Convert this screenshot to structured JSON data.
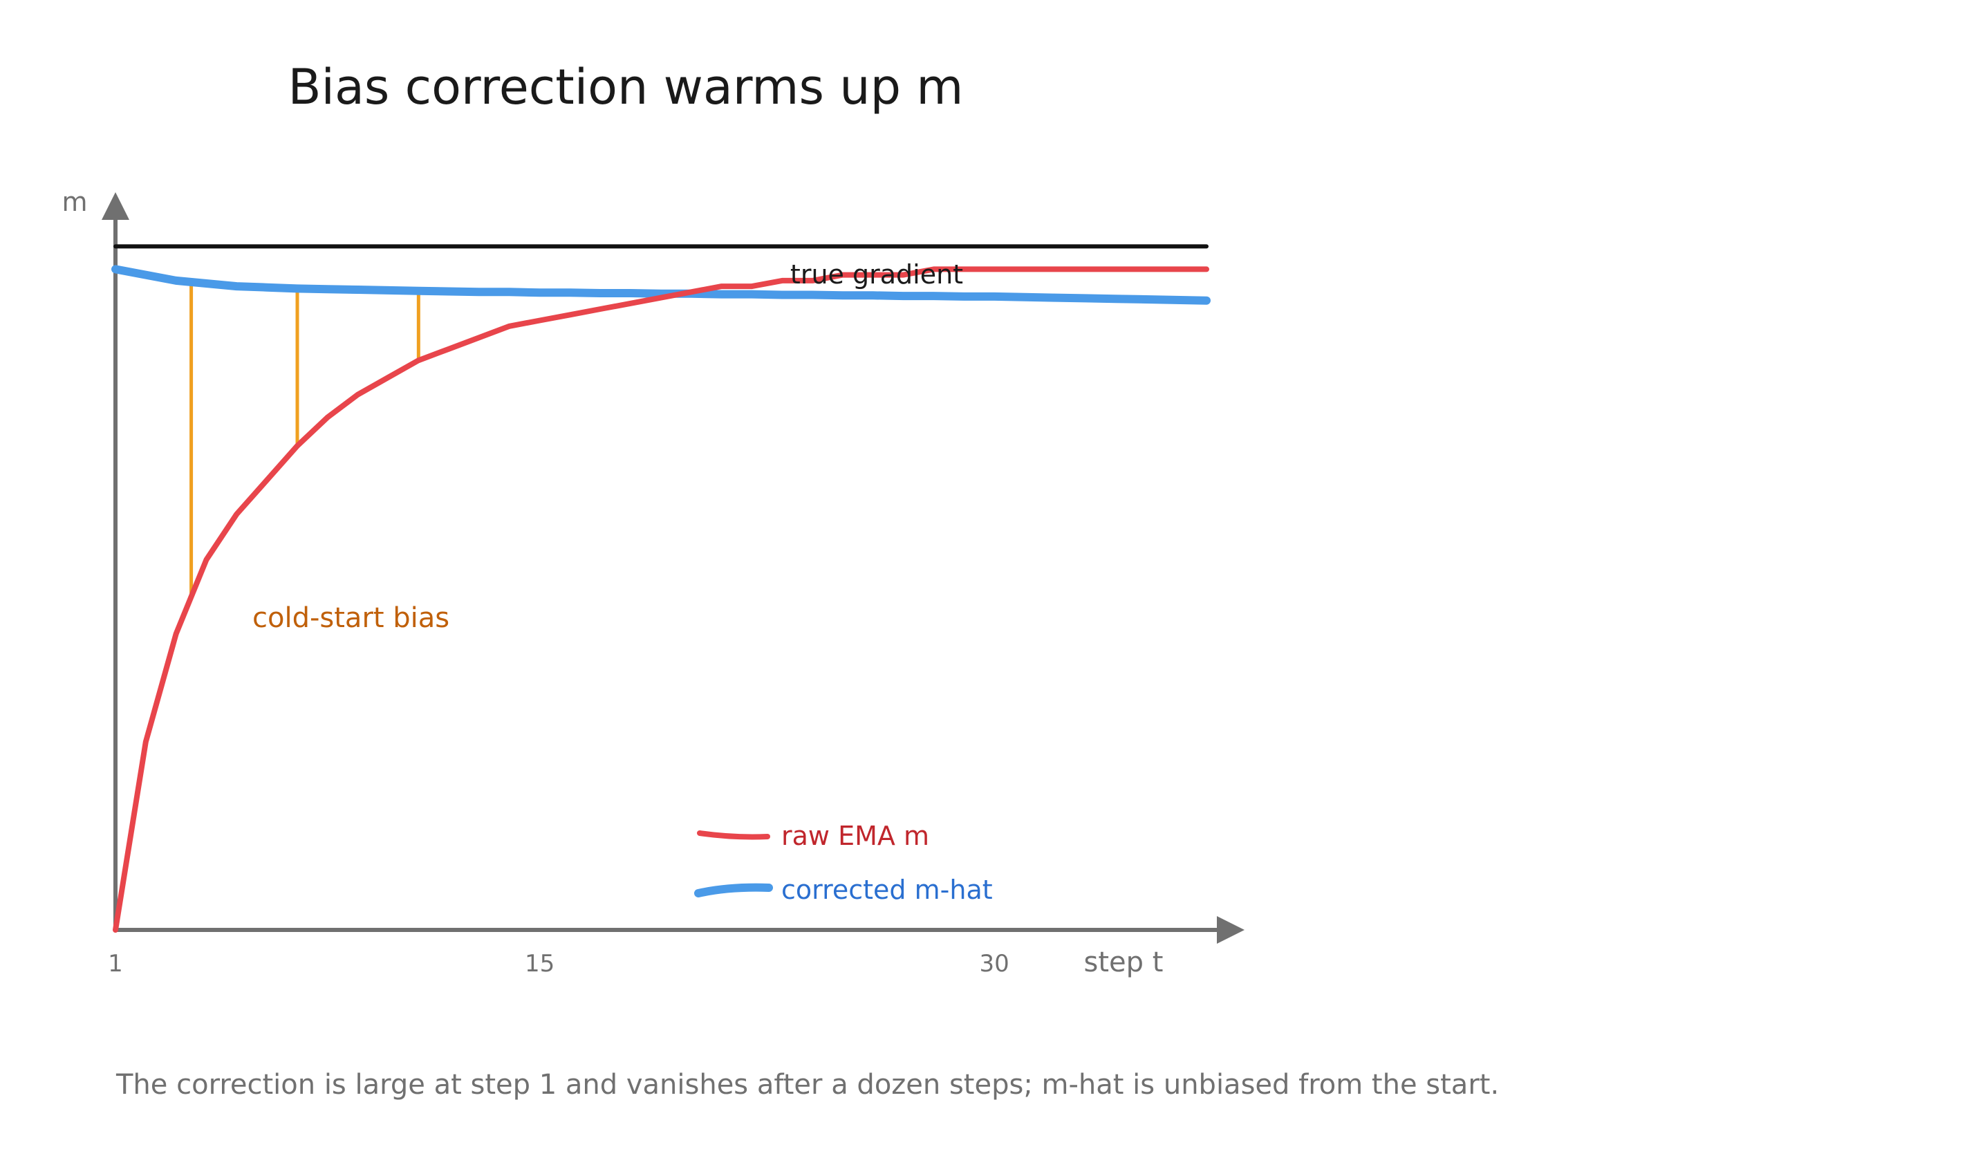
{
  "chart_data": {
    "type": "line",
    "title": "Bias correction warms up m",
    "ylabel": "m",
    "xlabel": "step t",
    "xlim": [
      1,
      37
    ],
    "ylim": [
      0,
      1.26
    ],
    "x_ticks": [
      1,
      15,
      30
    ],
    "grid": false,
    "legend_position": "bottom-center",
    "series": [
      {
        "name": "raw EMA m",
        "color": "#e8454b",
        "x": [
          1,
          2,
          3,
          4,
          5,
          6,
          7,
          8,
          9,
          10,
          11,
          12,
          13,
          14,
          15,
          16,
          17,
          18,
          19,
          20,
          21,
          22,
          23,
          24,
          25,
          26,
          27,
          28,
          29,
          30,
          31,
          32,
          33,
          34,
          35,
          36,
          37
        ],
        "y": [
          0.0,
          0.33,
          0.52,
          0.65,
          0.73,
          0.79,
          0.85,
          0.9,
          0.94,
          0.97,
          1.0,
          1.02,
          1.04,
          1.06,
          1.07,
          1.08,
          1.09,
          1.1,
          1.11,
          1.12,
          1.13,
          1.13,
          1.14,
          1.14,
          1.15,
          1.15,
          1.15,
          1.16,
          1.16,
          1.16,
          1.16,
          1.16,
          1.16,
          1.16,
          1.16,
          1.16,
          1.16
        ]
      },
      {
        "name": "corrected m-hat",
        "color": "#4a9ae8",
        "x": [
          1,
          2,
          3,
          4,
          5,
          6,
          7,
          8,
          9,
          10,
          11,
          12,
          13,
          14,
          15,
          16,
          17,
          18,
          19,
          20,
          21,
          22,
          23,
          24,
          25,
          26,
          27,
          28,
          29,
          30,
          31,
          32,
          33,
          34,
          35,
          36,
          37
        ],
        "y": [
          1.16,
          1.15,
          1.14,
          1.135,
          1.13,
          1.128,
          1.126,
          1.125,
          1.124,
          1.123,
          1.122,
          1.121,
          1.12,
          1.12,
          1.119,
          1.119,
          1.118,
          1.118,
          1.117,
          1.117,
          1.116,
          1.116,
          1.115,
          1.115,
          1.114,
          1.114,
          1.113,
          1.113,
          1.112,
          1.112,
          1.111,
          1.11,
          1.109,
          1.108,
          1.107,
          1.106,
          1.105
        ]
      },
      {
        "name": "true gradient",
        "color": "#111111",
        "x": [
          1,
          37
        ],
        "y": [
          1.2,
          1.2
        ]
      }
    ],
    "annotations": [
      {
        "text": "cold-start bias",
        "color": "#c0600a",
        "bracket_color": "#f0a020",
        "bias_steps": [
          3.5,
          7,
          11
        ]
      }
    ],
    "caption": "The correction is large at step 1 and vanishes after a dozen steps; m-hat is unbiased from the start."
  }
}
